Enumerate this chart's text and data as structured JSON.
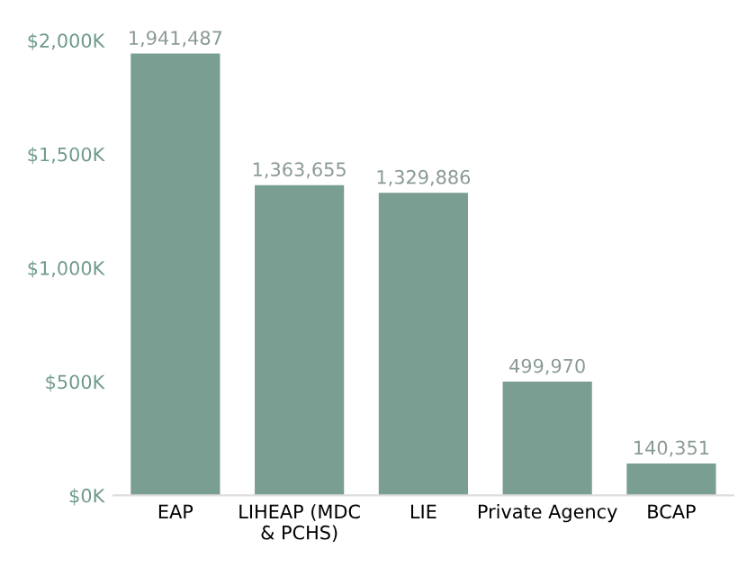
{
  "chart_data": {
    "type": "bar",
    "categories": [
      "EAP",
      "LIHEAP (MDC\n& PCHS)",
      "LIE",
      "Private Agency",
      "BCAP"
    ],
    "values": [
      1941487,
      1363655,
      1329886,
      499970,
      140351
    ],
    "color": "#7a9e91",
    "value_labels": [
      "1,941,487",
      "1,363,655",
      "1,329,886",
      "499,970",
      "140,351"
    ],
    "ylim": [
      0,
      2000000
    ],
    "yticks": [
      {
        "value": 0,
        "label": "$0K"
      },
      {
        "value": 500000,
        "label": "$500K"
      },
      {
        "value": 1000000,
        "label": "$1,000K"
      },
      {
        "value": 1500000,
        "label": "$1,500K"
      },
      {
        "value": 2000000,
        "label": "$2,000K"
      }
    ],
    "grid": false
  }
}
